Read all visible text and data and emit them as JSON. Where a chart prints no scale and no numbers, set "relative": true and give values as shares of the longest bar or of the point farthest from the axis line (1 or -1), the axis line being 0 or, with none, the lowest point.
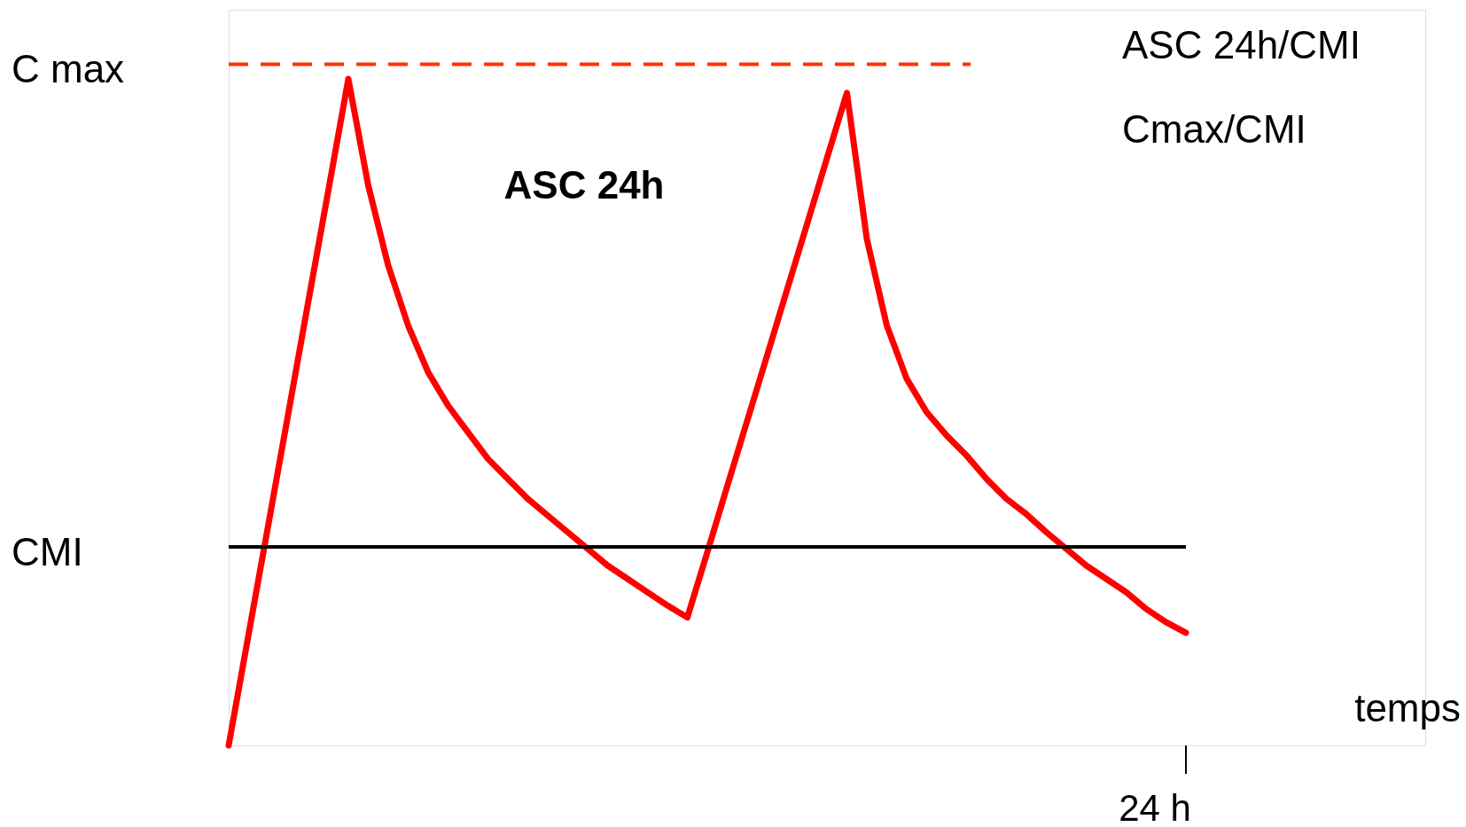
{
  "chart_data": {
    "type": "line",
    "relative": true,
    "xlabel": "temps",
    "categories": [
      null,
      null,
      null,
      null,
      null,
      null,
      null,
      null,
      null,
      null,
      null,
      null,
      null,
      null,
      null,
      null,
      null,
      null,
      null,
      null,
      null,
      null,
      null,
      null,
      null,
      null,
      null,
      null,
      null,
      null,
      null,
      null,
      null,
      null,
      null,
      null,
      null,
      null,
      null,
      null,
      null,
      null,
      null,
      null,
      null,
      null,
      null,
      null,
      null
    ],
    "series": [
      {
        "color": "#ff0000",
        "values": [
          0,
          0.167,
          0.333,
          0.5,
          0.667,
          0.833,
          1,
          0.84,
          0.72,
          0.63,
          0.56,
          0.51,
          0.47,
          0.43,
          0.4,
          0.37,
          0.345,
          0.32,
          0.295,
          0.27,
          0.25,
          0.23,
          0.21,
          0.192,
          0.29,
          0.389,
          0.487,
          0.585,
          0.684,
          0.782,
          0.881,
          0.979,
          0.76,
          0.63,
          0.55,
          0.5,
          0.465,
          0.435,
          0.4,
          0.37,
          0.347,
          0.32,
          0.295,
          0.27,
          0.25,
          0.23,
          0.205,
          0.185,
          0.169
        ]
      }
    ],
    "ref_lines": [
      {
        "axis": "y",
        "value": 1.022,
        "label": "C max",
        "color": "#ff3300",
        "line_style": "dashed"
      },
      {
        "axis": "y",
        "value": 0.298,
        "label": "CMI",
        "color": "#000000",
        "line_style": "solid"
      }
    ],
    "annotations": [
      "ASC 24h",
      "ASC 24h/CMI",
      "Cmax/CMI",
      "24 h"
    ],
    "marker": "none",
    "line_style": "solid"
  }
}
